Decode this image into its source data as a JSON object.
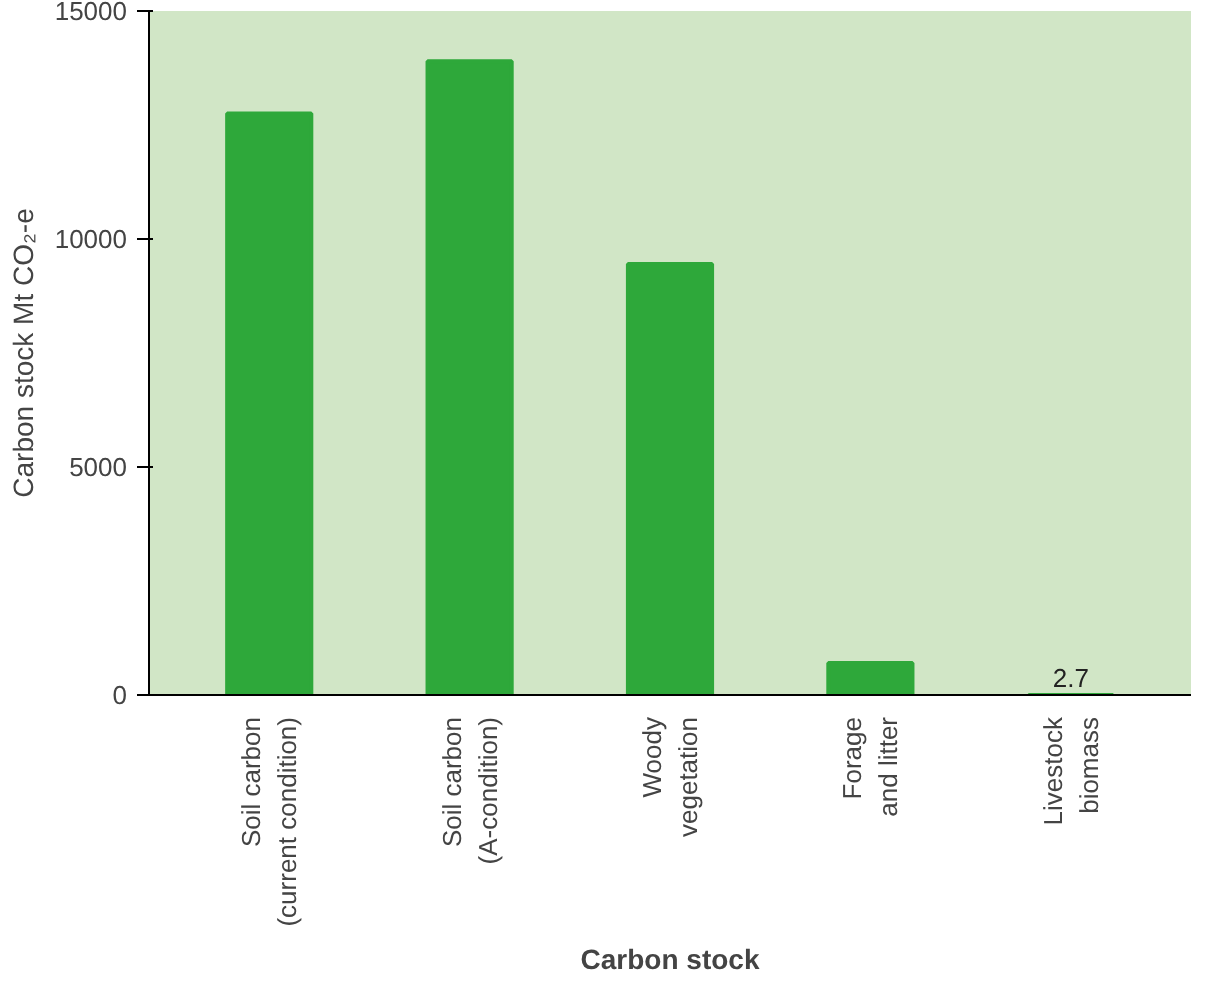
{
  "chart_data": {
    "type": "bar",
    "xlabel": "Carbon stock",
    "ylabel": "Carbon stock Mt CO₂-e",
    "categories": [
      "Soil carbon\n(current condition)",
      "Soil carbon\n(A-condition)",
      "Woody\nvegetation",
      "Forage\nand litter",
      "Livestock\nbiomass"
    ],
    "values": [
      12750,
      13900,
      9450,
      700,
      2.7
    ],
    "value_labels": [
      null,
      null,
      null,
      null,
      "2.7"
    ],
    "color": "#2ea83a",
    "ylim": [
      0,
      15000
    ],
    "yticks": [
      0,
      5000,
      10000,
      15000
    ],
    "grid": false
  }
}
